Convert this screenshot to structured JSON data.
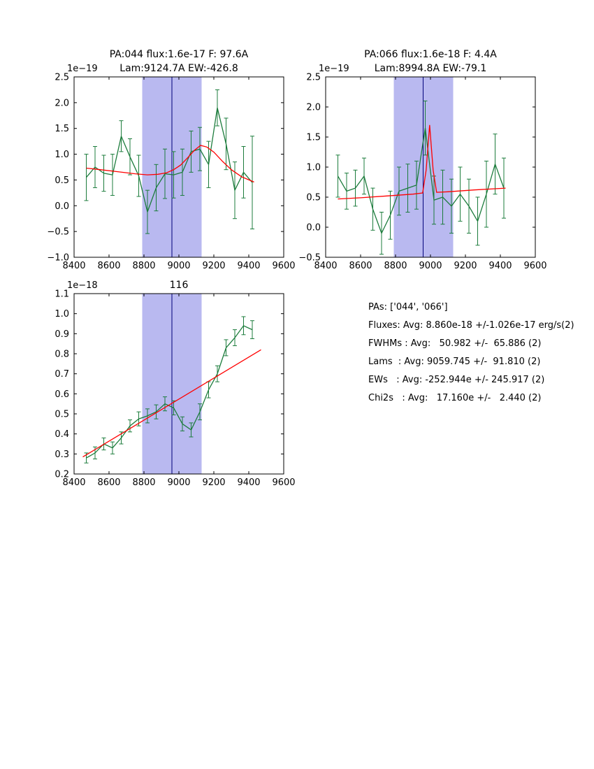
{
  "colors": {
    "background": "#ffffff",
    "data": "#1c7c3c",
    "fit": "#ff0000",
    "band": "#b9b9f0",
    "vline": "#00007a",
    "axis": "#000000"
  },
  "summary": {
    "lines": [
      "PAs: ['044', '066']",
      "Fluxes: Avg: 8.860e-18 +/-1.026e-17 erg/s(2)",
      "FWHMs : Avg:   50.982 +/-  65.886 (2)",
      "Lams  : Avg: 9059.745 +/-  91.810 (2)",
      "EWs   : Avg: -252.944e +/- 245.917 (2)",
      "Chi2s   : Avg:   17.160e +/-   2.440 (2)"
    ]
  },
  "chart_data": [
    {
      "type": "line",
      "title_lines": [
        "PA:044 flux:1.6e-17 F: 97.6A",
        "Lam:9124.7A EW:-426.8"
      ],
      "offset_label": "1e−19",
      "xlabel": "",
      "ylabel": "",
      "xlim": [
        8400,
        9600
      ],
      "ylim": [
        -1.0,
        2.5
      ],
      "xticks": [
        8400,
        8600,
        8800,
        9000,
        9200,
        9400,
        9600
      ],
      "xtick_labels": [
        "8400",
        "8600",
        "8800",
        "9000",
        "9200",
        "9400",
        "9600"
      ],
      "yticks": [
        -1.0,
        -0.5,
        0.0,
        0.5,
        1.0,
        1.5,
        2.0,
        2.5
      ],
      "ytick_labels": [
        "−1.0",
        "−0.5",
        "0.0",
        "0.5",
        "1.0",
        "1.5",
        "2.0",
        "2.5"
      ],
      "grid": false,
      "legend": null,
      "band": [
        8790,
        9130
      ],
      "vline": 8960,
      "series": [
        {
          "name": "spectrum",
          "role": "data",
          "x": [
            8470,
            8520,
            8570,
            8620,
            8670,
            8720,
            8770,
            8820,
            8870,
            8920,
            8970,
            9020,
            9070,
            9120,
            9170,
            9220,
            9270,
            9320,
            9370,
            9420
          ],
          "y": [
            0.55,
            0.75,
            0.63,
            0.6,
            1.35,
            0.95,
            0.58,
            -0.12,
            0.35,
            0.62,
            0.6,
            0.65,
            1.05,
            1.1,
            0.8,
            1.9,
            1.2,
            0.3,
            0.65,
            0.45
          ],
          "yerr": [
            0.45,
            0.4,
            0.35,
            0.4,
            0.3,
            0.35,
            0.4,
            0.42,
            0.45,
            0.48,
            0.45,
            0.45,
            0.4,
            0.42,
            0.45,
            0.35,
            0.5,
            0.55,
            0.5,
            0.9
          ]
        },
        {
          "name": "gaussian-fit",
          "role": "fit",
          "x": [
            8470,
            8550,
            8650,
            8750,
            8820,
            8880,
            8930,
            8970,
            9010,
            9050,
            9090,
            9124,
            9160,
            9200,
            9250,
            9300,
            9360,
            9430
          ],
          "y": [
            0.73,
            0.7,
            0.66,
            0.62,
            0.6,
            0.61,
            0.64,
            0.7,
            0.79,
            0.93,
            1.08,
            1.17,
            1.14,
            1.04,
            0.86,
            0.7,
            0.56,
            0.46
          ]
        }
      ]
    },
    {
      "type": "line",
      "title_lines": [
        "PA:066 flux:1.6e-18 F: 4.4A",
        "Lam:8994.8A EW:-79.1"
      ],
      "offset_label": "1e−19",
      "xlabel": "",
      "ylabel": "",
      "xlim": [
        8400,
        9600
      ],
      "ylim": [
        -0.5,
        2.5
      ],
      "xticks": [
        8400,
        8600,
        8800,
        9000,
        9200,
        9400,
        9600
      ],
      "xtick_labels": [
        "8400",
        "8600",
        "8800",
        "9000",
        "9200",
        "9400",
        "9600"
      ],
      "yticks": [
        -0.5,
        0.0,
        0.5,
        1.0,
        1.5,
        2.0,
        2.5
      ],
      "ytick_labels": [
        "−0.5",
        "0.0",
        "0.5",
        "1.0",
        "1.5",
        "2.0",
        "2.5"
      ],
      "grid": false,
      "legend": null,
      "band": [
        8790,
        9130
      ],
      "vline": 8958,
      "series": [
        {
          "name": "spectrum",
          "role": "data",
          "x": [
            8470,
            8520,
            8570,
            8620,
            8670,
            8720,
            8770,
            8820,
            8870,
            8920,
            8970,
            9020,
            9070,
            9120,
            9170,
            9220,
            9270,
            9320,
            9370,
            9420
          ],
          "y": [
            0.85,
            0.6,
            0.65,
            0.85,
            0.3,
            -0.1,
            0.2,
            0.6,
            0.65,
            0.7,
            1.65,
            0.45,
            0.5,
            0.35,
            0.55,
            0.35,
            0.1,
            0.55,
            1.05,
            0.65
          ],
          "yerr": [
            0.35,
            0.3,
            0.3,
            0.3,
            0.35,
            0.35,
            0.4,
            0.4,
            0.4,
            0.4,
            0.45,
            0.4,
            0.45,
            0.45,
            0.45,
            0.45,
            0.4,
            0.55,
            0.5,
            0.5
          ]
        },
        {
          "name": "gaussian-fit",
          "role": "fit",
          "x": [
            8470,
            8600,
            8750,
            8900,
            8955,
            8975,
            8995,
            9015,
            9035,
            9100,
            9250,
            9430
          ],
          "y": [
            0.47,
            0.49,
            0.52,
            0.55,
            0.57,
            0.95,
            1.7,
            0.95,
            0.58,
            0.59,
            0.62,
            0.65
          ]
        }
      ]
    },
    {
      "type": "line",
      "title_lines": [
        "116"
      ],
      "offset_label": "1e−18",
      "xlabel": "",
      "ylabel": "",
      "xlim": [
        8400,
        9600
      ],
      "ylim": [
        0.2,
        1.1
      ],
      "xticks": [
        8400,
        8600,
        8800,
        9000,
        9200,
        9400,
        9600
      ],
      "xtick_labels": [
        "8400",
        "8600",
        "8800",
        "9000",
        "9200",
        "9400",
        "9600"
      ],
      "yticks": [
        0.2,
        0.3,
        0.4,
        0.5,
        0.6,
        0.7,
        0.8,
        0.9,
        1.0,
        1.1
      ],
      "ytick_labels": [
        "0.2",
        "0.3",
        "0.4",
        "0.5",
        "0.6",
        "0.7",
        "0.8",
        "0.9",
        "1.0",
        "1.1"
      ],
      "grid": false,
      "legend": null,
      "band": [
        8790,
        9130
      ],
      "vline": 8960,
      "series": [
        {
          "name": "spectrum",
          "role": "data",
          "x": [
            8470,
            8520,
            8570,
            8620,
            8670,
            8720,
            8770,
            8820,
            8870,
            8920,
            8970,
            9020,
            9070,
            9120,
            9170,
            9220,
            9270,
            9320,
            9370,
            9420
          ],
          "y": [
            0.28,
            0.305,
            0.35,
            0.33,
            0.38,
            0.44,
            0.475,
            0.49,
            0.51,
            0.55,
            0.53,
            0.45,
            0.42,
            0.51,
            0.62,
            0.7,
            0.83,
            0.88,
            0.94,
            0.92
          ],
          "yerr": [
            0.025,
            0.03,
            0.03,
            0.03,
            0.03,
            0.03,
            0.035,
            0.035,
            0.035,
            0.035,
            0.035,
            0.035,
            0.035,
            0.04,
            0.04,
            0.04,
            0.04,
            0.04,
            0.045,
            0.045
          ]
        },
        {
          "name": "linear-fit",
          "role": "fit",
          "x": [
            8450,
            9470
          ],
          "y": [
            0.285,
            0.82
          ]
        }
      ]
    }
  ]
}
